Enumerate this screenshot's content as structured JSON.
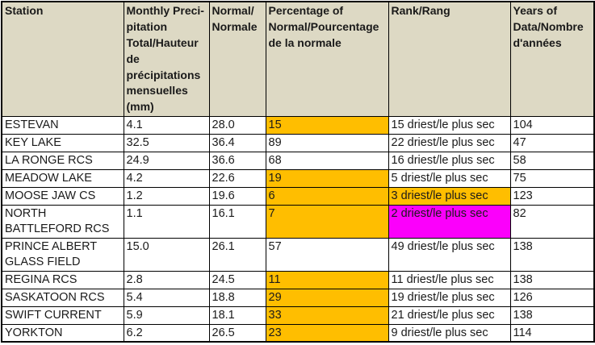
{
  "colors": {
    "header_bg": "#DDD9C4",
    "orange": "#FFBE00",
    "magenta": "#FB00FB",
    "border": "#000000",
    "text": "#1A1A1A"
  },
  "table": {
    "columns": [
      {
        "label": "Station"
      },
      {
        "label": "Monthly Preci-\npitation\nTotal/Hauteur\nde\nprécipitations\nmensuelles\n(mm)"
      },
      {
        "label": "Normal/\nNormale"
      },
      {
        "label": "Percentage of\nNormal/Pourcentage\nde la normale"
      },
      {
        "label": "Rank/Rang"
      },
      {
        "label": "Years of\nData/Nombre\nd'années"
      }
    ],
    "rows": [
      {
        "station": "ESTEVAN",
        "monthly_precip_mm": "4.1",
        "normal_mm": "28.0",
        "percent_of_normal": "15",
        "rank": "15 driest/le plus sec",
        "years_of_data": "104",
        "percent_highlight": "orange",
        "rank_highlight": null,
        "double": false
      },
      {
        "station": "KEY LAKE",
        "monthly_precip_mm": "32.5",
        "normal_mm": "36.4",
        "percent_of_normal": "89",
        "rank": "22 driest/le plus sec",
        "years_of_data": "47",
        "percent_highlight": null,
        "rank_highlight": null,
        "double": false
      },
      {
        "station": "LA RONGE RCS",
        "monthly_precip_mm": "24.9",
        "normal_mm": "36.6",
        "percent_of_normal": "68",
        "rank": "16 driest/le plus sec",
        "years_of_data": "58",
        "percent_highlight": null,
        "rank_highlight": null,
        "double": false
      },
      {
        "station": "MEADOW LAKE",
        "monthly_precip_mm": "4.2",
        "normal_mm": "22.6",
        "percent_of_normal": "19",
        "rank": "5 driest/le plus sec",
        "years_of_data": "75",
        "percent_highlight": "orange",
        "rank_highlight": null,
        "double": false
      },
      {
        "station": "MOOSE JAW CS",
        "monthly_precip_mm": "1.2",
        "normal_mm": "19.6",
        "percent_of_normal": "6",
        "rank": "3 driest/le plus sec",
        "years_of_data": "123",
        "percent_highlight": "orange",
        "rank_highlight": "orange",
        "double": false
      },
      {
        "station": "NORTH BATTLEFORD RCS",
        "monthly_precip_mm": "1.1",
        "normal_mm": "16.1",
        "percent_of_normal": "7",
        "rank": "2 driest/le plus sec",
        "years_of_data": "82",
        "percent_highlight": "orange",
        "rank_highlight": "magenta",
        "double": true
      },
      {
        "station": "PRINCE ALBERT GLASS FIELD",
        "monthly_precip_mm": "15.0",
        "normal_mm": "26.1",
        "percent_of_normal": "57",
        "rank": "49 driest/le plus sec",
        "years_of_data": "138",
        "percent_highlight": null,
        "rank_highlight": null,
        "double": true
      },
      {
        "station": "REGINA RCS",
        "monthly_precip_mm": "2.8",
        "normal_mm": "24.5",
        "percent_of_normal": "11",
        "rank": "11 driest/le plus sec",
        "years_of_data": "138",
        "percent_highlight": "orange",
        "rank_highlight": null,
        "double": false
      },
      {
        "station": "SASKATOON RCS",
        "monthly_precip_mm": "5.4",
        "normal_mm": "18.8",
        "percent_of_normal": "29",
        "rank": "19 driest/le plus sec",
        "years_of_data": "126",
        "percent_highlight": "orange",
        "rank_highlight": null,
        "double": false
      },
      {
        "station": "SWIFT CURRENT",
        "monthly_precip_mm": "5.9",
        "normal_mm": "18.1",
        "percent_of_normal": "33",
        "rank": "21 driest/le plus sec",
        "years_of_data": "138",
        "percent_highlight": "orange",
        "rank_highlight": null,
        "double": false
      },
      {
        "station": "YORKTON",
        "monthly_precip_mm": "6.2",
        "normal_mm": "26.5",
        "percent_of_normal": "23",
        "rank": "9 driest/le plus sec",
        "years_of_data": "114",
        "percent_highlight": "orange",
        "rank_highlight": null,
        "double": false
      }
    ]
  }
}
